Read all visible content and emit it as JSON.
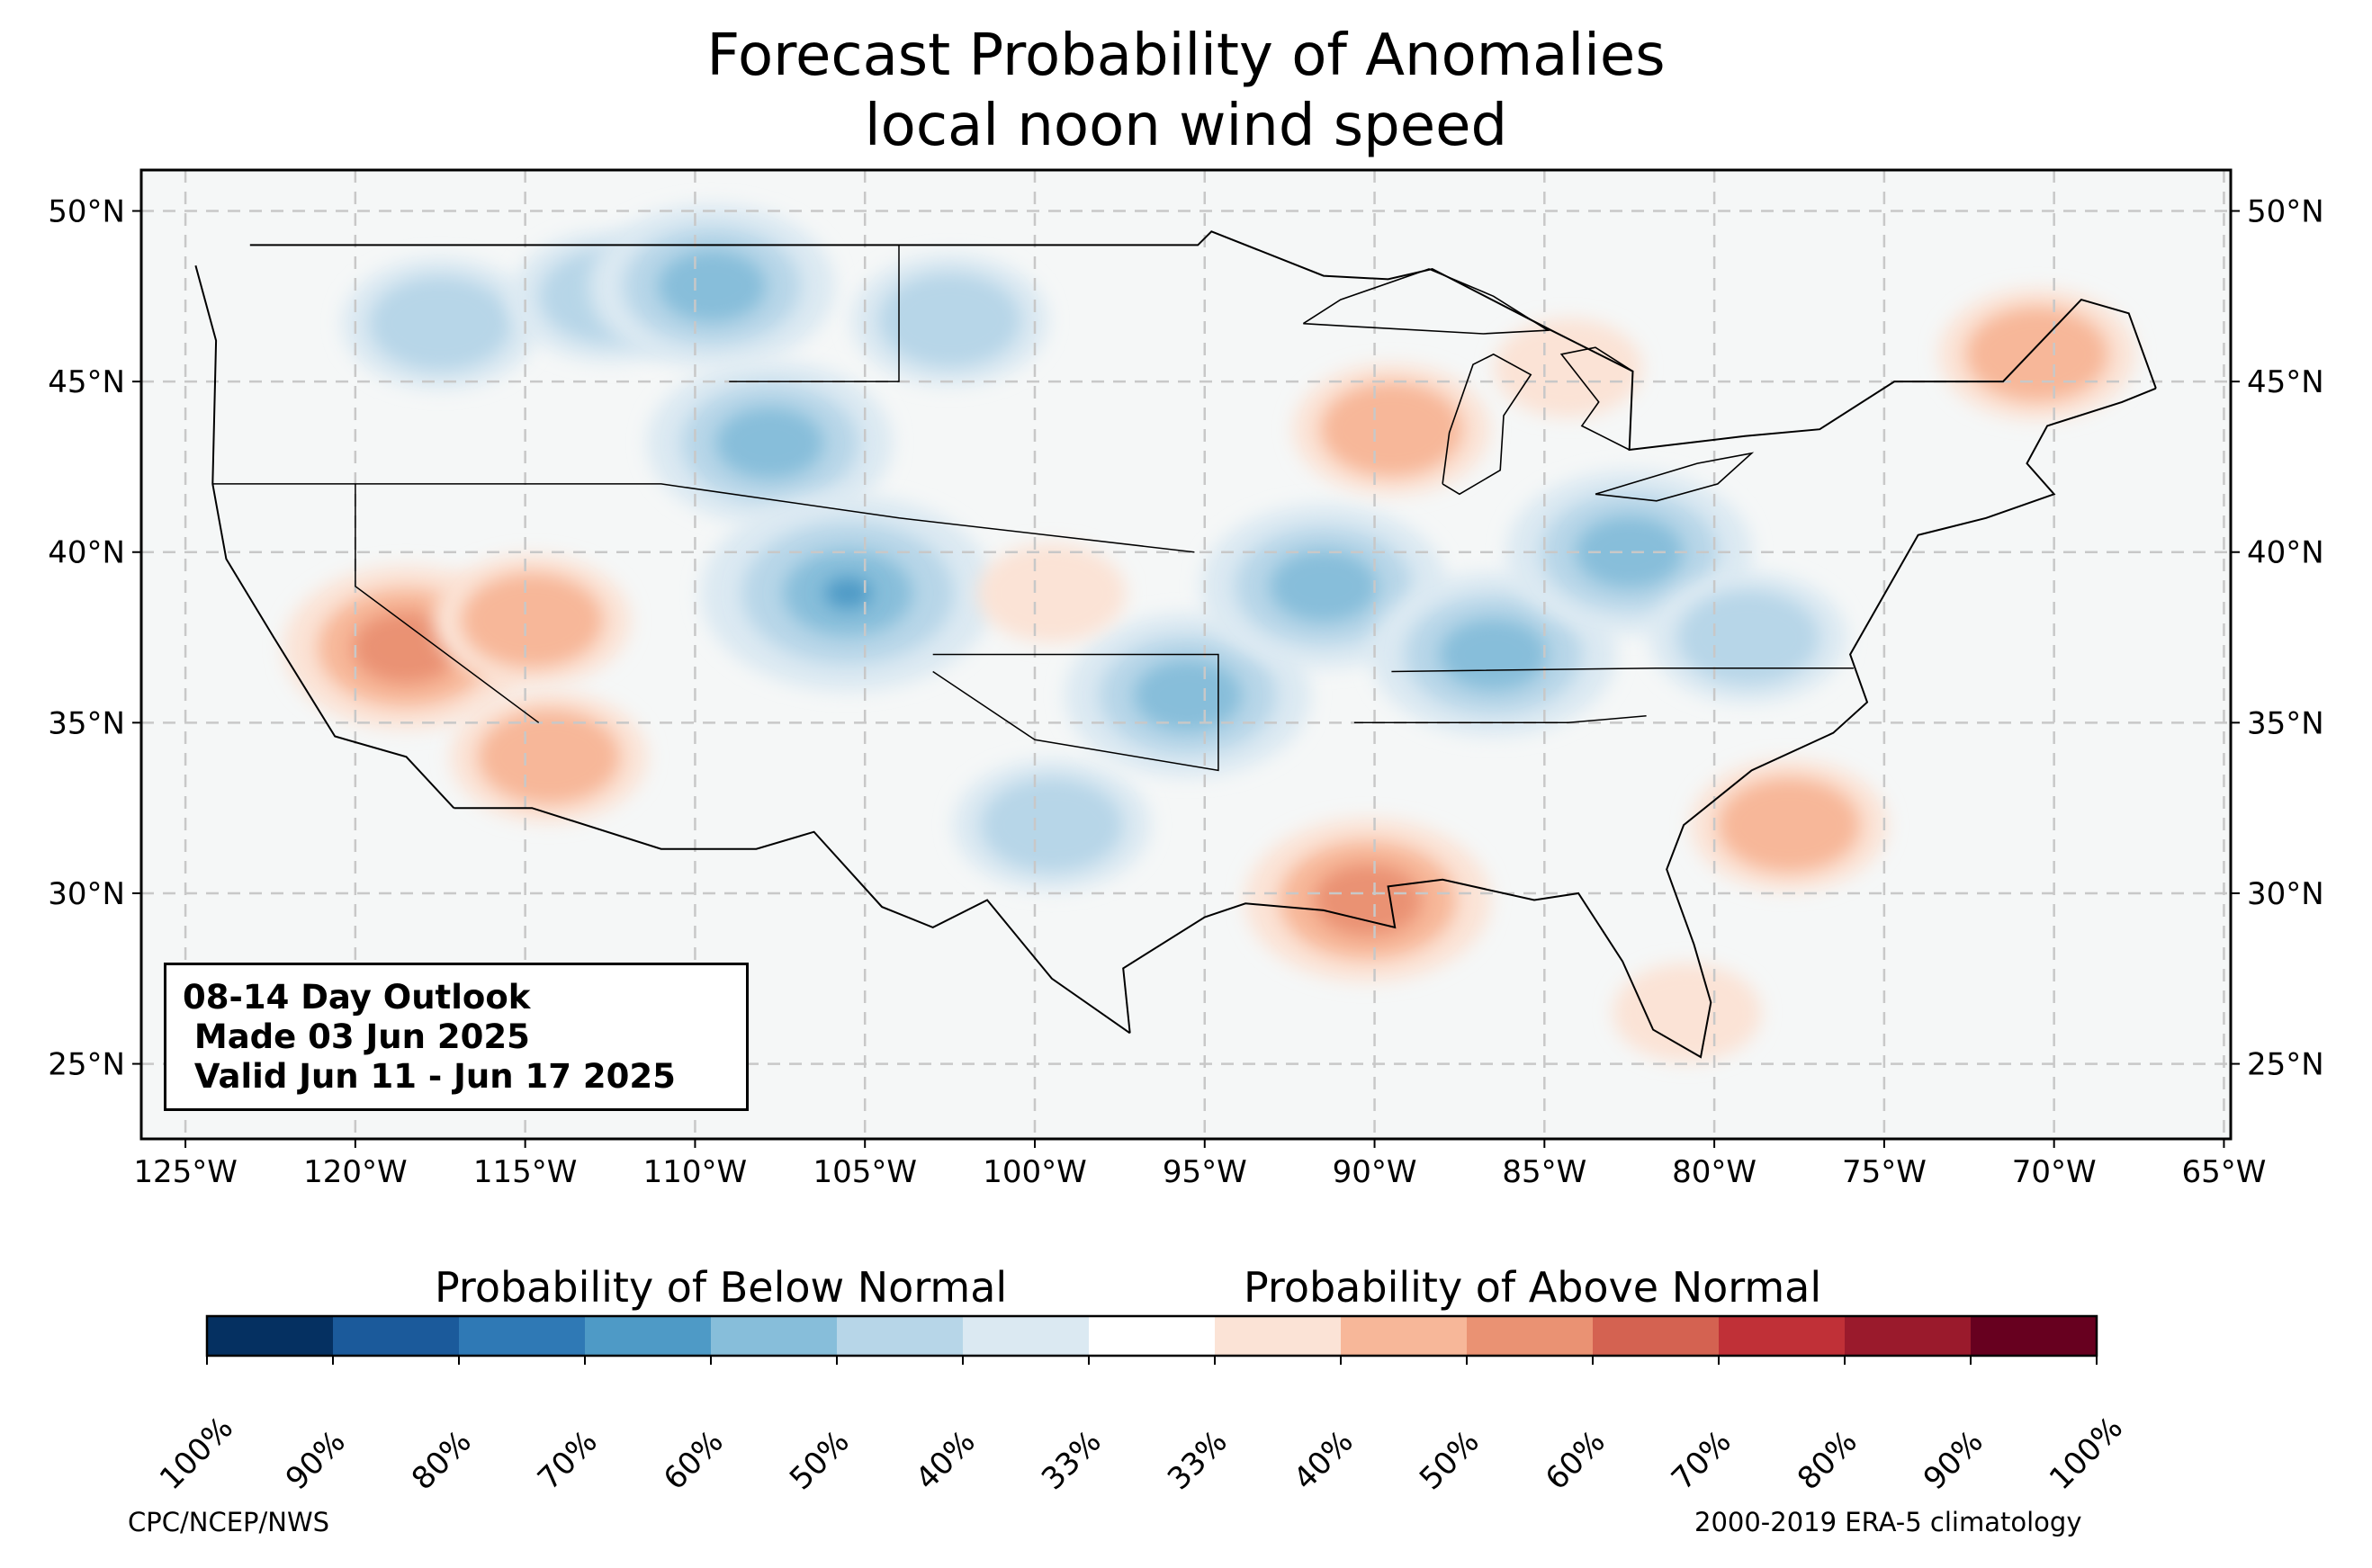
{
  "title": {
    "line1": "Forecast Probability of Anomalies",
    "line2": "local noon wind speed"
  },
  "map": {
    "lat_ticks": [
      "50°N",
      "45°N",
      "40°N",
      "35°N",
      "30°N",
      "25°N"
    ],
    "lon_ticks": [
      "125°W",
      "120°W",
      "115°W",
      "110°W",
      "105°W",
      "100°W",
      "95°W",
      "90°W",
      "85°W",
      "80°W",
      "75°W",
      "70°W",
      "65°W"
    ],
    "extent": {
      "lon_min": -126.3,
      "lon_max": -64.8,
      "lat_min": 22.8,
      "lat_max": 51.2
    },
    "background_color": "#f5f7f7",
    "border_color": "#000000",
    "below_normal_regions": [
      {
        "name": "northwest",
        "lon": -117.5,
        "lat": 46.7,
        "level": 1
      },
      {
        "name": "montana-west",
        "lon": -112.5,
        "lat": 47.5,
        "level": 1
      },
      {
        "name": "montana-north",
        "lon": -109.5,
        "lat": 47.8,
        "level": 2
      },
      {
        "name": "wyoming-northern-colorado",
        "lon": -107.8,
        "lat": 43.2,
        "level": 2
      },
      {
        "name": "colorado-new-mexico",
        "lon": -105.5,
        "lat": 38.8,
        "level": 3
      },
      {
        "name": "north-dakota",
        "lon": -102.5,
        "lat": 46.8,
        "level": 1
      },
      {
        "name": "texas-west-central",
        "lon": -99.5,
        "lat": 32.0,
        "level": 1
      },
      {
        "name": "oklahoma-arkansas",
        "lon": -95.5,
        "lat": 35.8,
        "level": 2
      },
      {
        "name": "missouri",
        "lon": -91.5,
        "lat": 39.0,
        "level": 2
      },
      {
        "name": "tennessee-valley",
        "lon": -86.5,
        "lat": 37.0,
        "level": 2
      },
      {
        "name": "ohio-valley",
        "lon": -82.5,
        "lat": 40.0,
        "level": 2
      },
      {
        "name": "mid-atlantic",
        "lon": -79.0,
        "lat": 37.5,
        "level": 1
      }
    ],
    "above_normal_regions": [
      {
        "name": "central-california",
        "lon": -118.5,
        "lat": 37.2,
        "level": 2
      },
      {
        "name": "nevada",
        "lon": -114.8,
        "lat": 38.0,
        "level": 1
      },
      {
        "name": "arizona",
        "lon": -114.3,
        "lat": 34.0,
        "level": 1
      },
      {
        "name": "wisconsin",
        "lon": -89.5,
        "lat": 43.6,
        "level": 1
      },
      {
        "name": "louisiana",
        "lon": -90.2,
        "lat": 29.8,
        "level": 2
      },
      {
        "name": "new-england",
        "lon": -70.5,
        "lat": 45.8,
        "level": 1
      },
      {
        "name": "georgia",
        "lon": -77.8,
        "lat": 32.0,
        "level": 1
      },
      {
        "name": "florida",
        "lon": -80.8,
        "lat": 26.5,
        "level": 0
      },
      {
        "name": "michigan-north",
        "lon": -84.3,
        "lat": 45.4,
        "level": 0
      },
      {
        "name": "kansas",
        "lon": -99.5,
        "lat": 38.8,
        "level": 0
      }
    ]
  },
  "legend": {
    "below_title": "Probability of Below Normal",
    "above_title": "Probability of Above Normal",
    "colors": [
      "#053061",
      "#1b5a9b",
      "#2f79b5",
      "#4e9ac6",
      "#87beda",
      "#b7d6e8",
      "#dbe9f2",
      "#ffffff",
      "#fbe3d6",
      "#f7b799",
      "#ea9273",
      "#d46251",
      "#c03037",
      "#9a1a2c",
      "#67001f"
    ],
    "tick_labels": [
      "100%",
      "90%",
      "80%",
      "70%",
      "60%",
      "50%",
      "40%",
      "33%",
      "33%",
      "40%",
      "50%",
      "60%",
      "70%",
      "80%",
      "90%",
      "100%"
    ]
  },
  "outlook_box": {
    "line1": "08-14 Day Outlook",
    "line2": " Made 03 Jun 2025",
    "line3": " Valid Jun 11 - Jun 17 2025"
  },
  "credits": {
    "left": "CPC/NCEP/NWS",
    "right": "2000-2019 ERA-5 climatology"
  }
}
